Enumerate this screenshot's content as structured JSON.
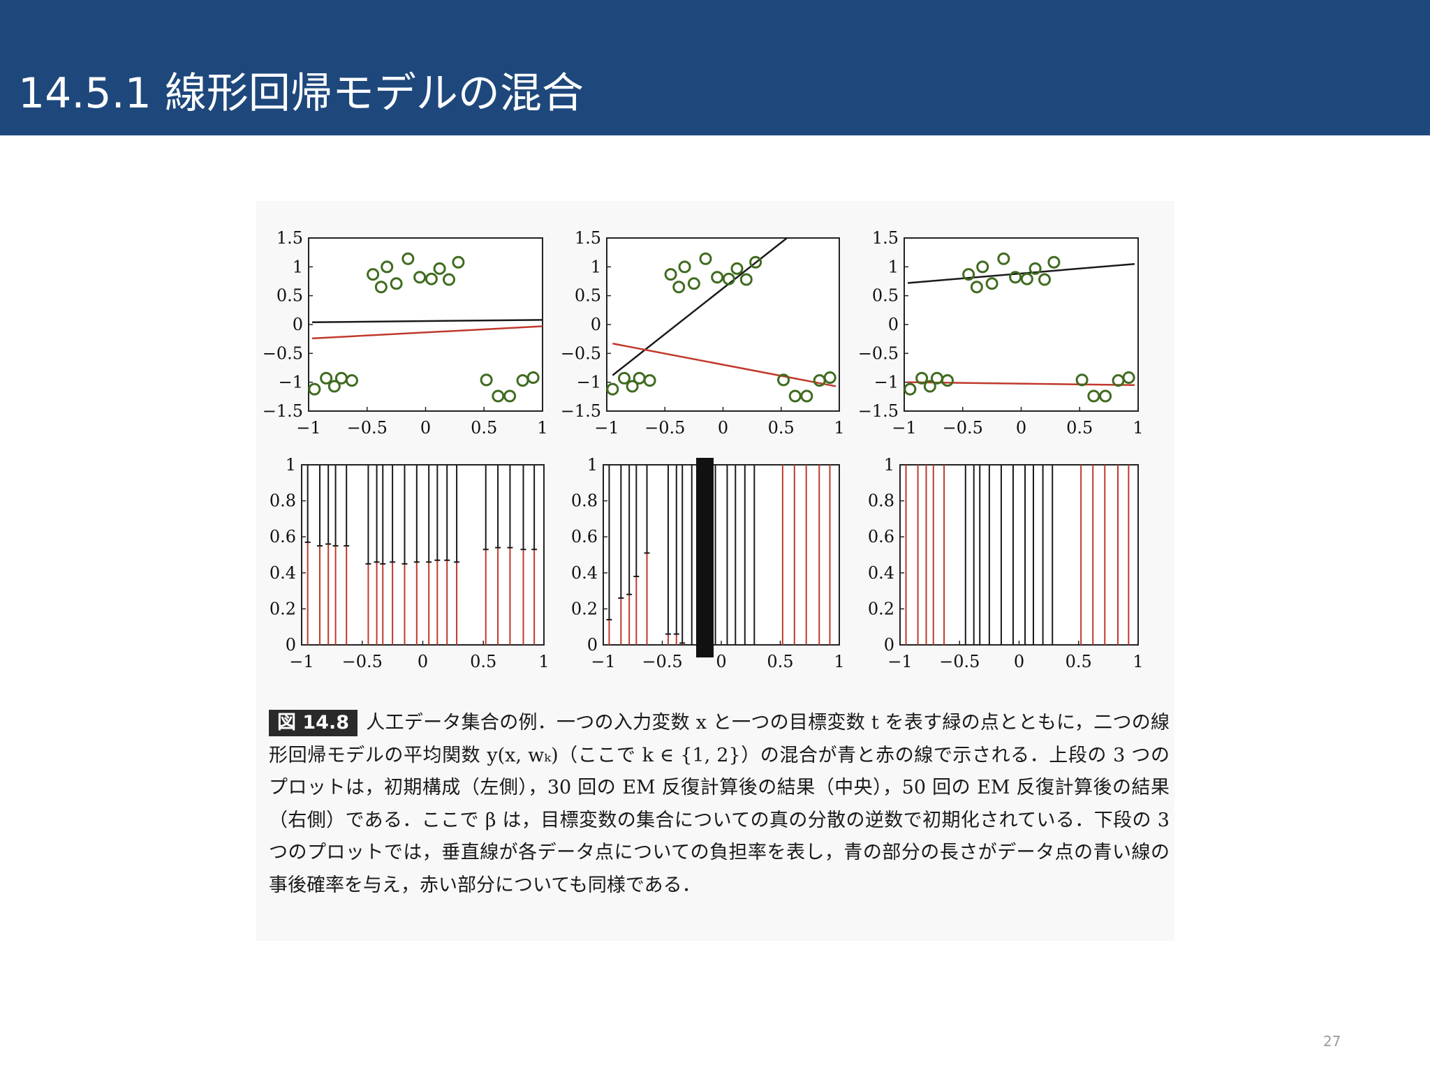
{
  "slide": {
    "title": "14.5.1 線形回帰モデルの混合",
    "page_number": "27"
  },
  "caption": {
    "label": "図 14.8",
    "text": "人工データ集合の例．一つの入力変数 x と一つの目標変数 t を表す緑の点とともに，二つの線形回帰モデルの平均関数 y(x, wₖ)（ここで k ∈ {1, 2}）の混合が青と赤の線で示される．上段の 3 つのプロットは，初期構成（左側），30 回の EM 反復計算後の結果（中央），50 回の EM 反復計算後の結果（右側）である．ここで β は，目標変数の集合についての真の分散の逆数で初期化されている．下段の 3 つのプロットでは，垂直線が各データ点についての負担率を表し，青の部分の長さがデータ点の青い線の事後確率を与え，赤い部分についても同様である．"
  },
  "colors": {
    "header": "#1e487c",
    "point": "#3f6b1f",
    "line_black": "#1a1a1a",
    "line_red": "#c0392b"
  },
  "chart_data": [
    {
      "type": "scatter",
      "panel": "top-left",
      "xlim": [
        -1,
        1
      ],
      "ylim": [
        -1.5,
        1.5
      ],
      "xticks": [
        "−1",
        "−0.5",
        "0",
        "0.5",
        "1"
      ],
      "yticks": [
        "1.5",
        "1",
        "0.5",
        "0",
        "−0.5",
        "−1",
        "−1.5"
      ],
      "points": [
        {
          "x": -0.95,
          "y": -1.12
        },
        {
          "x": -0.85,
          "y": -0.93
        },
        {
          "x": -0.78,
          "y": -1.07
        },
        {
          "x": -0.72,
          "y": -0.93
        },
        {
          "x": -0.63,
          "y": -0.97
        },
        {
          "x": -0.45,
          "y": 0.87
        },
        {
          "x": -0.38,
          "y": 0.65
        },
        {
          "x": -0.33,
          "y": 1.0
        },
        {
          "x": -0.25,
          "y": 0.71
        },
        {
          "x": -0.15,
          "y": 1.14
        },
        {
          "x": -0.05,
          "y": 0.82
        },
        {
          "x": 0.05,
          "y": 0.79
        },
        {
          "x": 0.12,
          "y": 0.97
        },
        {
          "x": 0.2,
          "y": 0.78
        },
        {
          "x": 0.28,
          "y": 1.08
        },
        {
          "x": 0.52,
          "y": -0.96
        },
        {
          "x": 0.62,
          "y": -1.24
        },
        {
          "x": 0.72,
          "y": -1.24
        },
        {
          "x": 0.83,
          "y": -0.97
        },
        {
          "x": 0.92,
          "y": -0.92
        }
      ],
      "lines": [
        {
          "color": "black",
          "x": [
            -0.97,
            1.0
          ],
          "y": [
            0.04,
            0.08
          ]
        },
        {
          "color": "red",
          "x": [
            -0.97,
            1.0
          ],
          "y": [
            -0.24,
            -0.03
          ]
        }
      ]
    },
    {
      "type": "scatter",
      "panel": "top-middle",
      "xlim": [
        -1,
        1
      ],
      "ylim": [
        -1.5,
        1.5
      ],
      "xticks": [
        "−1",
        "−0.5",
        "0",
        "0.5",
        "1"
      ],
      "yticks": [
        "1.5",
        "1",
        "0.5",
        "0",
        "−0.5",
        "−1",
        "−1.5"
      ],
      "points": [
        {
          "x": -0.95,
          "y": -1.12
        },
        {
          "x": -0.85,
          "y": -0.93
        },
        {
          "x": -0.78,
          "y": -1.07
        },
        {
          "x": -0.72,
          "y": -0.93
        },
        {
          "x": -0.63,
          "y": -0.97
        },
        {
          "x": -0.45,
          "y": 0.87
        },
        {
          "x": -0.38,
          "y": 0.65
        },
        {
          "x": -0.33,
          "y": 1.0
        },
        {
          "x": -0.25,
          "y": 0.71
        },
        {
          "x": -0.15,
          "y": 1.14
        },
        {
          "x": -0.05,
          "y": 0.82
        },
        {
          "x": 0.05,
          "y": 0.79
        },
        {
          "x": 0.12,
          "y": 0.97
        },
        {
          "x": 0.2,
          "y": 0.78
        },
        {
          "x": 0.28,
          "y": 1.08
        },
        {
          "x": 0.52,
          "y": -0.96
        },
        {
          "x": 0.62,
          "y": -1.24
        },
        {
          "x": 0.72,
          "y": -1.24
        },
        {
          "x": 0.83,
          "y": -0.97
        },
        {
          "x": 0.92,
          "y": -0.92
        }
      ],
      "lines": [
        {
          "color": "black",
          "x": [
            -0.95,
            0.55
          ],
          "y": [
            -0.88,
            1.5
          ]
        },
        {
          "color": "red",
          "x": [
            -0.95,
            0.97
          ],
          "y": [
            -0.33,
            -1.07
          ]
        }
      ]
    },
    {
      "type": "scatter",
      "panel": "top-right",
      "xlim": [
        -1,
        1
      ],
      "ylim": [
        -1.5,
        1.5
      ],
      "xticks": [
        "−1",
        "−0.5",
        "0",
        "0.5",
        "1"
      ],
      "yticks": [
        "1.5",
        "1",
        "0.5",
        "0",
        "−0.5",
        "−1",
        "−1.5"
      ],
      "points": [
        {
          "x": -0.95,
          "y": -1.12
        },
        {
          "x": -0.85,
          "y": -0.93
        },
        {
          "x": -0.78,
          "y": -1.07
        },
        {
          "x": -0.72,
          "y": -0.93
        },
        {
          "x": -0.63,
          "y": -0.97
        },
        {
          "x": -0.45,
          "y": 0.87
        },
        {
          "x": -0.38,
          "y": 0.65
        },
        {
          "x": -0.33,
          "y": 1.0
        },
        {
          "x": -0.25,
          "y": 0.71
        },
        {
          "x": -0.15,
          "y": 1.14
        },
        {
          "x": -0.05,
          "y": 0.82
        },
        {
          "x": 0.05,
          "y": 0.79
        },
        {
          "x": 0.12,
          "y": 0.97
        },
        {
          "x": 0.2,
          "y": 0.78
        },
        {
          "x": 0.28,
          "y": 1.08
        },
        {
          "x": 0.52,
          "y": -0.96
        },
        {
          "x": 0.62,
          "y": -1.24
        },
        {
          "x": 0.72,
          "y": -1.24
        },
        {
          "x": 0.83,
          "y": -0.97
        },
        {
          "x": 0.92,
          "y": -0.92
        }
      ],
      "lines": [
        {
          "color": "black",
          "x": [
            -0.97,
            0.97
          ],
          "y": [
            0.72,
            1.05
          ]
        },
        {
          "color": "red",
          "x": [
            -0.97,
            0.97
          ],
          "y": [
            -1.0,
            -1.05
          ]
        }
      ]
    },
    {
      "type": "bar",
      "panel": "bottom-left",
      "xlim": [
        -1,
        1
      ],
      "ylim": [
        0,
        1
      ],
      "xticks": [
        "−1",
        "−0.5",
        "0",
        "0.5",
        "1"
      ],
      "yticks": [
        "1",
        "0.8",
        "0.6",
        "0.4",
        "0.2",
        "0"
      ],
      "x": [
        -0.95,
        -0.85,
        -0.78,
        -0.72,
        -0.63,
        -0.45,
        -0.38,
        -0.33,
        -0.25,
        -0.15,
        -0.05,
        0.05,
        0.12,
        0.2,
        0.28,
        0.52,
        0.62,
        0.72,
        0.83,
        0.92
      ],
      "red_values": [
        0.57,
        0.55,
        0.56,
        0.55,
        0.55,
        0.45,
        0.46,
        0.45,
        0.46,
        0.45,
        0.46,
        0.46,
        0.47,
        0.47,
        0.46,
        0.53,
        0.54,
        0.54,
        0.53,
        0.53
      ]
    },
    {
      "type": "bar",
      "panel": "bottom-middle",
      "xlim": [
        -1,
        1
      ],
      "ylim": [
        0,
        1
      ],
      "xticks": [
        "−1",
        "−0.5",
        "0",
        "0.5",
        "1"
      ],
      "yticks": [
        "1",
        "0.8",
        "0.6",
        "0.4",
        "0.2",
        "0"
      ],
      "x": [
        -0.95,
        -0.85,
        -0.78,
        -0.72,
        -0.63,
        -0.45,
        -0.38,
        -0.33,
        -0.25,
        -0.15,
        -0.05,
        0.05,
        0.12,
        0.2,
        0.28,
        0.52,
        0.62,
        0.72,
        0.83,
        0.92
      ],
      "red_values": [
        0.14,
        0.26,
        0.28,
        0.38,
        0.51,
        0.06,
        0.06,
        0.01,
        0.0,
        0.0,
        0.0,
        0.0,
        0.0,
        0.0,
        0.0,
        1.0,
        1.0,
        1.0,
        1.0,
        1.0
      ]
    },
    {
      "type": "bar",
      "panel": "bottom-right",
      "xlim": [
        -1,
        1
      ],
      "ylim": [
        0,
        1
      ],
      "xticks": [
        "−1",
        "−0.5",
        "0",
        "0.5",
        "1"
      ],
      "yticks": [
        "1",
        "0.8",
        "0.6",
        "0.4",
        "0.2",
        "0"
      ],
      "x": [
        -0.95,
        -0.85,
        -0.78,
        -0.72,
        -0.63,
        -0.45,
        -0.38,
        -0.33,
        -0.25,
        -0.15,
        -0.05,
        0.05,
        0.12,
        0.2,
        0.28,
        0.52,
        0.62,
        0.72,
        0.83,
        0.92
      ],
      "red_values": [
        1.0,
        1.0,
        1.0,
        1.0,
        1.0,
        0.0,
        0.0,
        0.0,
        0.0,
        0.0,
        0.0,
        0.0,
        0.0,
        0.0,
        0.0,
        1.0,
        1.0,
        1.0,
        1.0,
        1.0
      ]
    }
  ]
}
